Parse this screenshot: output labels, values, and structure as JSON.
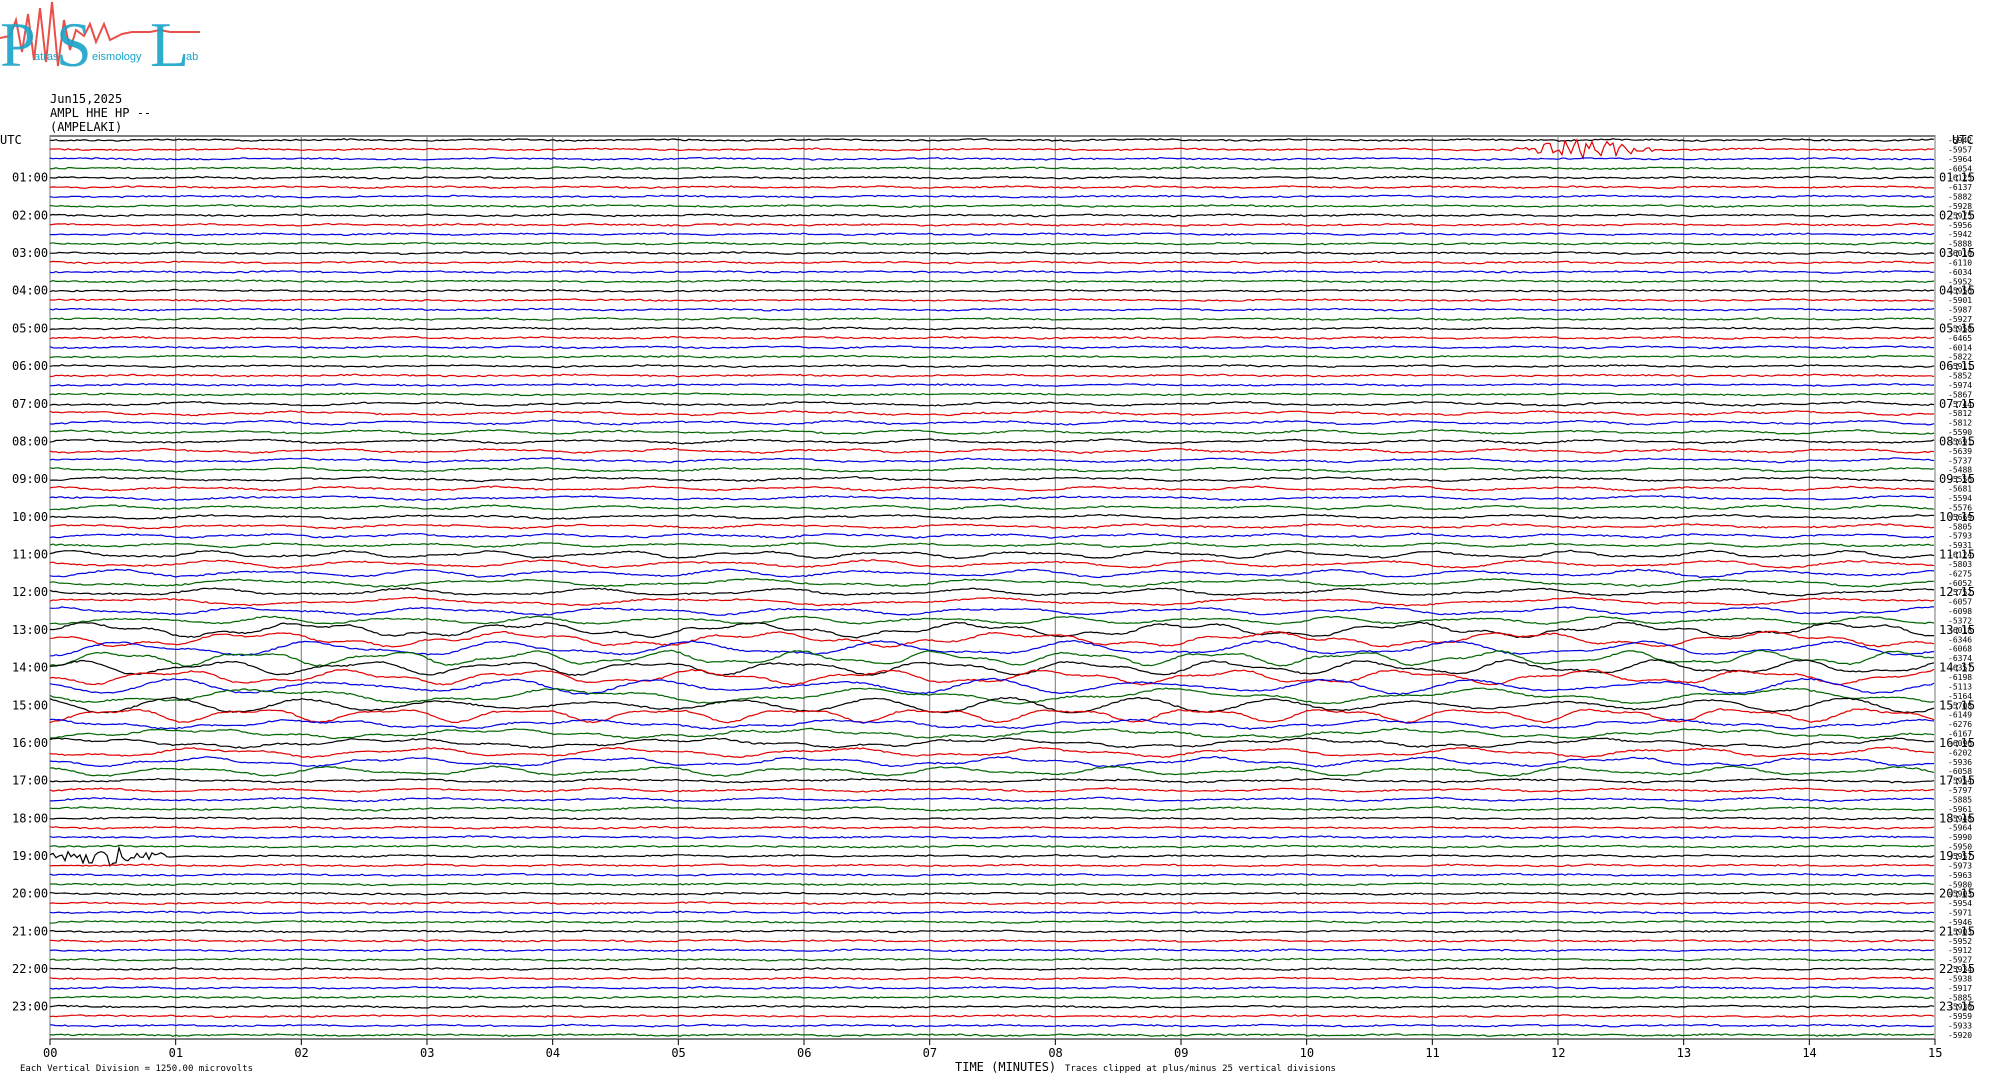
{
  "logo": {
    "letters": [
      "P",
      "S",
      "L"
    ],
    "word1": "atras",
    "word2": "eismology",
    "word3": "ab",
    "colors": {
      "cyan": "#19a4c8",
      "red": "#e8504a"
    }
  },
  "header": {
    "date": "Jun15,2025",
    "station": "AMPL HHE HP --",
    "location": "(AMPELAKI)"
  },
  "chart_data": {
    "type": "line",
    "title": "",
    "utc_label_left": "UTC",
    "utc_label_right": "UTC",
    "xlabel": "TIME (MINUTES)",
    "x_ticks": [
      "00",
      "01",
      "02",
      "03",
      "04",
      "05",
      "06",
      "07",
      "08",
      "09",
      "10",
      "11",
      "12",
      "13",
      "14",
      "15"
    ],
    "xlim": [
      0,
      15
    ],
    "left_hour_labels": [
      "01:00",
      "02:00",
      "03:00",
      "04:00",
      "05:00",
      "06:00",
      "07:00",
      "08:00",
      "09:00",
      "10:00",
      "11:00",
      "12:00",
      "13:00",
      "14:00",
      "15:00",
      "16:00",
      "17:00",
      "18:00",
      "19:00",
      "20:00",
      "21:00",
      "22:00",
      "23:00"
    ],
    "right_hour_labels": [
      "01:15",
      "02:15",
      "03:15",
      "04:15",
      "05:15",
      "06:15",
      "07:15",
      "08:15",
      "09:15",
      "10:15",
      "11:15",
      "12:15",
      "13:15",
      "14:15",
      "15:15",
      "16:15",
      "17:15",
      "18:15",
      "19:15",
      "20:15",
      "21:15",
      "22:15",
      "23:15"
    ],
    "trace_colors": [
      "#000000",
      "#e00000",
      "#0000e0",
      "#006400"
    ],
    "num_traces": 96,
    "trace_offsets": [
      "-5942",
      "-5957",
      "-5964",
      "-6054",
      "-6125",
      "-6137",
      "-5882",
      "-5928",
      "-5975",
      "-5956",
      "-5942",
      "-5888",
      "-6010",
      "-6110",
      "-6034",
      "-5952",
      "-5956",
      "-5901",
      "-5987",
      "-5927",
      "-5958",
      "-6465",
      "-6014",
      "-5822",
      "-5911",
      "-5852",
      "-5974",
      "-5867",
      "-5744",
      "-5812",
      "-5812",
      "-5590",
      "-5691",
      "-5639",
      "-5737",
      "-5488",
      "-5556",
      "-5681",
      "-5594",
      "-5576",
      "-5669",
      "-5805",
      "-5793",
      "-5931",
      "-6124",
      "-5803",
      "-6275",
      "-6052",
      "-5752",
      "-6057",
      "-6098",
      "-5372",
      "-6018",
      "-6346",
      "-6068",
      "-6374",
      "-6357",
      "-6198",
      "-5113",
      "-5164",
      "-5708",
      "-6149",
      "-6276",
      "-6167",
      "-6096",
      "-6202",
      "-5936",
      "-6058",
      "-5954",
      "-5797",
      "-5885",
      "-5961",
      "-5948",
      "-5964",
      "-5990",
      "-5950",
      "-5957",
      "-5973",
      "-5963",
      "-5980",
      "-5903",
      "-5954",
      "-5971",
      "-5946",
      "-5903",
      "-5952",
      "-5912",
      "-5927",
      "-5934",
      "-5938",
      "-5917",
      "-5885",
      "-5930",
      "-5959",
      "-5933",
      "-5920"
    ],
    "events": [
      {
        "trace": 1,
        "minute": 12.2,
        "label": "event"
      },
      {
        "trace": 76,
        "minute": 0.4,
        "label": "event"
      }
    ],
    "footer_left": "Each Vertical Division = 1250.00 microvolts",
    "footer_right": "Traces clipped at plus/minus 25 vertical divisions"
  }
}
